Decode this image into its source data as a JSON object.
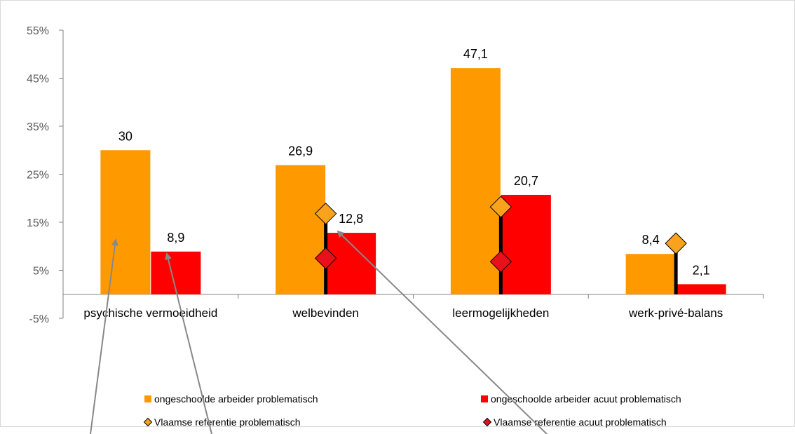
{
  "chart_data": {
    "type": "bar",
    "categories": [
      "psychische vermoeidheid",
      "welbevinden",
      "leermogelijkheden",
      "werk-privé-balans"
    ],
    "series": [
      {
        "name": "ongeschoolde arbeider problematisch",
        "values": [
          30,
          26.9,
          47.1,
          8.4
        ],
        "labels": [
          "30",
          "26,9",
          "47,1",
          "8,4"
        ],
        "color": "#FF9900"
      },
      {
        "name": "ongeschoolde arbeider acuut problematisch",
        "values": [
          8.9,
          12.8,
          20.7,
          2.1
        ],
        "labels": [
          "8,9",
          "12,8",
          "20,7",
          "2,1"
        ],
        "color": "#FF0000"
      }
    ],
    "reference_series": [
      {
        "name": "Vlaamse referentie problematisch",
        "values": [
          null,
          16.8,
          18.2,
          10.6
        ],
        "color": "#F9A21B"
      },
      {
        "name": "Vlaamse referentie acuut problematisch",
        "values": [
          null,
          7.5,
          6.8,
          null
        ],
        "color": "#E8101A"
      }
    ],
    "yticks": [
      "55%",
      "45%",
      "35%",
      "25%",
      "15%",
      "5%",
      "-5%"
    ],
    "ytick_values": [
      55,
      45,
      35,
      25,
      15,
      5,
      -5
    ],
    "ylim": [
      -5,
      55
    ],
    "legend_position": "bottom",
    "grid": false
  }
}
